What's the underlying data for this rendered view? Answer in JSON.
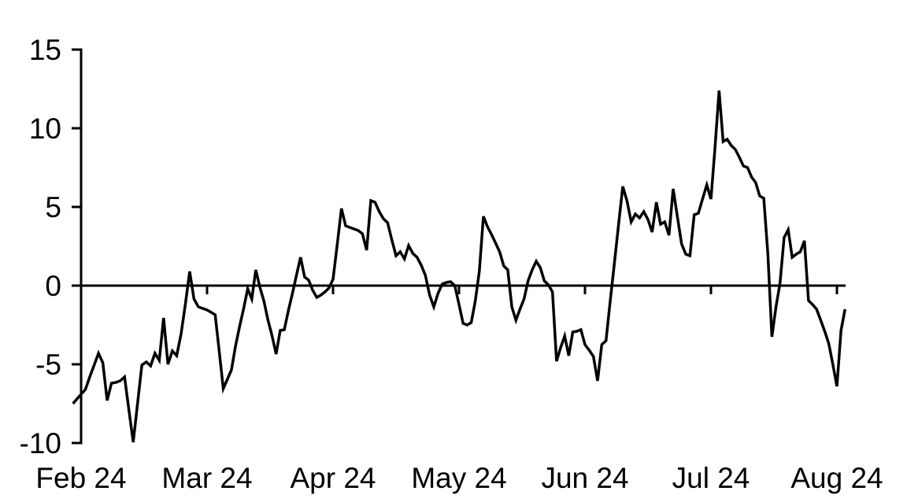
{
  "chart_data": {
    "type": "line",
    "title": "",
    "x_tick_labels": [
      "Feb 24",
      "Mar 24",
      "Apr 24",
      "May 24",
      "Jun 24",
      "Jul 24",
      "Aug 24"
    ],
    "y_ticks": [
      15,
      10,
      5,
      0,
      -5,
      -10
    ],
    "ylim": [
      -10,
      15
    ],
    "x_unit": "day",
    "x_start_date": "2024-01-30",
    "x_end_date": "2024-08-03",
    "grid": "off",
    "legend": "none",
    "zero_baseline": true,
    "line_color": "#000000",
    "axis_color": "#000000",
    "background_color": "#FFFFFF",
    "values": [
      -7.5,
      -7.2,
      -6.9,
      -6.6,
      -5.8,
      -5.05,
      -4.3,
      -4.9,
      -7.3,
      -6.2,
      -6.15,
      -6.05,
      -5.8,
      -7.9,
      -9.95,
      -7.5,
      -5.05,
      -4.85,
      -5.1,
      -4.3,
      -4.75,
      -2.05,
      -5.0,
      -4.15,
      -4.45,
      -3.1,
      -1.2,
      0.9,
      -0.85,
      -1.35,
      -1.45,
      -1.55,
      -1.7,
      -1.85,
      -4.2,
      -6.55,
      -5.95,
      -5.35,
      -3.85,
      -2.6,
      -1.45,
      -0.2,
      -0.85,
      1.0,
      -0.1,
      -1.0,
      -2.2,
      -3.2,
      -4.35,
      -2.85,
      -2.8,
      -1.6,
      -0.5,
      0.65,
      1.8,
      0.55,
      0.35,
      -0.3,
      -0.75,
      -0.6,
      -0.4,
      -0.15,
      0.4,
      2.6,
      4.9,
      3.8,
      3.7,
      3.6,
      3.5,
      3.3,
      2.25,
      5.4,
      5.3,
      4.7,
      4.25,
      4.0,
      2.9,
      1.9,
      2.15,
      1.7,
      2.55,
      2.05,
      1.8,
      1.3,
      0.65,
      -0.6,
      -1.35,
      -0.5,
      0.1,
      0.2,
      0.25,
      0.0,
      -1.2,
      -2.4,
      -2.5,
      -2.35,
      -1.0,
      0.9,
      4.4,
      3.75,
      3.25,
      2.7,
      2.15,
      1.25,
      1.0,
      -1.35,
      -2.2,
      -1.5,
      -0.85,
      0.3,
      1.0,
      1.55,
      1.15,
      0.3,
      0.05,
      -0.4,
      -4.8,
      -3.95,
      -3.2,
      -4.45,
      -2.95,
      -2.9,
      -2.8,
      -3.75,
      -4.1,
      -4.5,
      -6.05,
      -3.75,
      -3.5,
      -1.0,
      1.4,
      3.9,
      6.3,
      5.4,
      4.05,
      4.55,
      4.3,
      4.7,
      4.2,
      3.4,
      5.3,
      3.9,
      4.05,
      3.2,
      6.15,
      4.4,
      2.65,
      2.0,
      1.9,
      4.5,
      4.6,
      5.5,
      6.4,
      5.5,
      8.8,
      12.4,
      9.15,
      9.3,
      8.9,
      8.65,
      8.15,
      7.6,
      7.5,
      6.9,
      6.55,
      5.7,
      5.55,
      2.0,
      -3.25,
      -1.35,
      0.15,
      3.05,
      3.55,
      1.8,
      2.0,
      2.15,
      2.85,
      -0.95,
      -1.2,
      -1.5,
      -2.2,
      -2.9,
      -3.7,
      -5.0,
      -6.4,
      -2.85,
      -1.5
    ]
  }
}
